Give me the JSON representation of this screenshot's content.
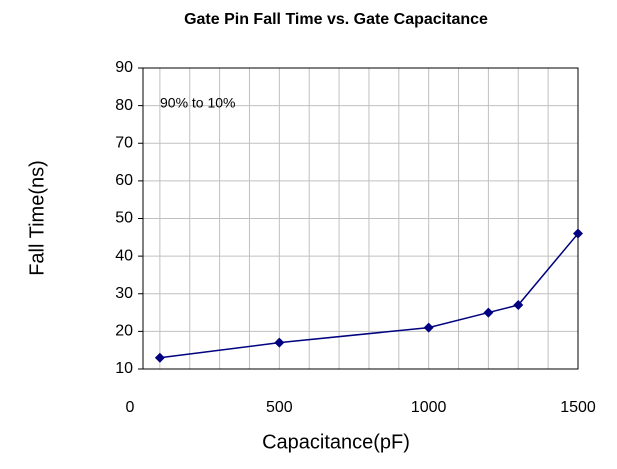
{
  "chart_data": {
    "type": "line",
    "title": "Gate Pin Fall Time vs. Gate Capacitance",
    "xlabel": "Capacitance(pF)",
    "ylabel": "Fall Time(ns)",
    "annotation": "90% to 10%",
    "x": [
      100,
      500,
      1000,
      1200,
      1300,
      1500
    ],
    "series": [
      {
        "name": "Fall Time",
        "color": "#000080",
        "values": [
          13,
          17,
          21,
          25,
          27,
          46
        ]
      }
    ],
    "xlim": [
      0,
      1500
    ],
    "xticks": [
      0,
      500,
      1000,
      1500
    ],
    "x_gridlines": [
      100,
      200,
      300,
      400,
      500,
      600,
      700,
      800,
      900,
      1000,
      1100,
      1200,
      1300,
      1400,
      1500
    ],
    "ylim": [
      10,
      90
    ],
    "yticks": [
      10,
      20,
      30,
      40,
      50,
      60,
      70,
      80,
      90
    ],
    "grid": true
  }
}
